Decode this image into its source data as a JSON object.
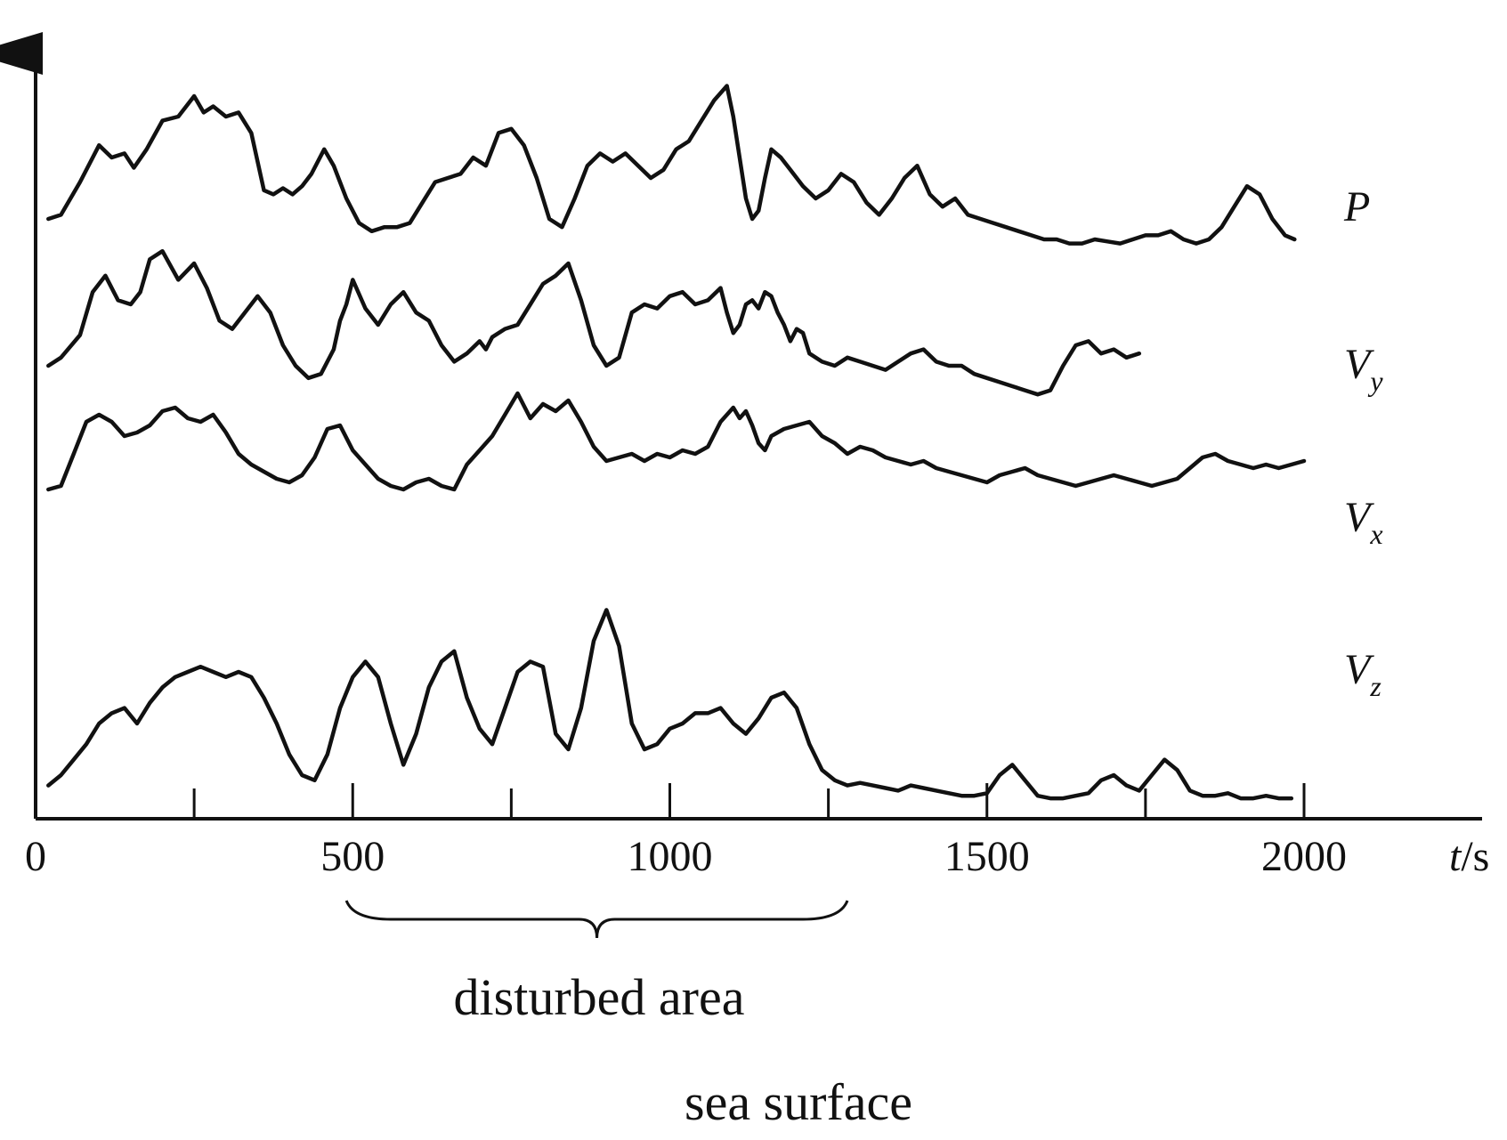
{
  "chart_data": {
    "type": "line",
    "title": "",
    "xlabel": "t/s",
    "xlabel_var": "t",
    "xlabel_unit": "/s",
    "ylabel": "",
    "xlim": [
      0,
      2000
    ],
    "x_ticks": [
      0,
      500,
      1000,
      1500,
      2000
    ],
    "minor_ticks": [
      250,
      750,
      1250,
      1750
    ],
    "grid": false,
    "legend": "none",
    "line_color": "#111111",
    "series": [
      {
        "name": "P",
        "label_main": "P",
        "label_sub": "",
        "x": [
          20,
          40,
          70,
          100,
          120,
          140,
          155,
          175,
          200,
          225,
          250,
          265,
          280,
          300,
          320,
          340,
          360,
          375,
          390,
          405,
          420,
          435,
          455,
          470,
          490,
          510,
          530,
          550,
          570,
          590,
          610,
          630,
          650,
          670,
          690,
          710,
          730,
          750,
          770,
          790,
          810,
          830,
          850,
          870,
          890,
          910,
          930,
          950,
          970,
          990,
          1010,
          1030,
          1050,
          1070,
          1090,
          1100,
          1110,
          1120,
          1130,
          1140,
          1150,
          1160,
          1175,
          1190,
          1210,
          1230,
          1250,
          1270,
          1290,
          1310,
          1330,
          1350,
          1370,
          1390,
          1410,
          1430,
          1450,
          1470,
          1490,
          1510,
          1530,
          1550,
          1570,
          1590,
          1610,
          1630,
          1650,
          1670,
          1690,
          1710,
          1730,
          1750,
          1770,
          1790,
          1810,
          1830,
          1850,
          1870,
          1890,
          1910,
          1930,
          1950,
          1970,
          1985
        ],
        "values": [
          0.3,
          0.32,
          0.48,
          0.66,
          0.6,
          0.62,
          0.55,
          0.64,
          0.78,
          0.8,
          0.9,
          0.82,
          0.85,
          0.8,
          0.82,
          0.72,
          0.44,
          0.42,
          0.45,
          0.42,
          0.46,
          0.52,
          0.64,
          0.56,
          0.4,
          0.28,
          0.24,
          0.26,
          0.26,
          0.28,
          0.38,
          0.48,
          0.5,
          0.52,
          0.6,
          0.56,
          0.72,
          0.74,
          0.66,
          0.5,
          0.3,
          0.26,
          0.4,
          0.56,
          0.62,
          0.58,
          0.62,
          0.56,
          0.5,
          0.54,
          0.64,
          0.68,
          0.78,
          0.88,
          0.95,
          0.8,
          0.6,
          0.4,
          0.3,
          0.34,
          0.5,
          0.64,
          0.6,
          0.54,
          0.46,
          0.4,
          0.44,
          0.52,
          0.48,
          0.38,
          0.32,
          0.4,
          0.5,
          0.56,
          0.42,
          0.36,
          0.4,
          0.32,
          0.3,
          0.28,
          0.26,
          0.24,
          0.22,
          0.2,
          0.2,
          0.18,
          0.18,
          0.2,
          0.19,
          0.18,
          0.2,
          0.22,
          0.22,
          0.24,
          0.2,
          0.18,
          0.2,
          0.26,
          0.36,
          0.46,
          0.42,
          0.3,
          0.22,
          0.2
        ]
      },
      {
        "name": "Vy",
        "label_main": "V",
        "label_sub": "y",
        "x": [
          20,
          40,
          70,
          90,
          110,
          130,
          150,
          165,
          180,
          200,
          225,
          250,
          270,
          290,
          310,
          330,
          350,
          370,
          390,
          410,
          430,
          450,
          470,
          480,
          490,
          500,
          520,
          540,
          560,
          580,
          600,
          620,
          640,
          660,
          680,
          700,
          710,
          720,
          740,
          760,
          780,
          800,
          820,
          840,
          860,
          880,
          900,
          920,
          940,
          960,
          980,
          1000,
          1020,
          1040,
          1060,
          1080,
          1090,
          1100,
          1110,
          1120,
          1130,
          1140,
          1150,
          1160,
          1170,
          1180,
          1190,
          1200,
          1210,
          1220,
          1240,
          1260,
          1280,
          1300,
          1320,
          1340,
          1360,
          1380,
          1400,
          1420,
          1440,
          1460,
          1480,
          1500,
          1520,
          1540,
          1560,
          1580,
          1600,
          1620,
          1640,
          1660,
          1680,
          1700,
          1720,
          1740
        ],
        "values": [
          0.3,
          0.34,
          0.45,
          0.66,
          0.74,
          0.62,
          0.6,
          0.66,
          0.82,
          0.86,
          0.72,
          0.8,
          0.68,
          0.52,
          0.48,
          0.56,
          0.64,
          0.56,
          0.4,
          0.3,
          0.24,
          0.26,
          0.38,
          0.52,
          0.6,
          0.72,
          0.58,
          0.5,
          0.6,
          0.66,
          0.56,
          0.52,
          0.4,
          0.32,
          0.36,
          0.42,
          0.38,
          0.44,
          0.48,
          0.5,
          0.6,
          0.7,
          0.74,
          0.8,
          0.62,
          0.4,
          0.3,
          0.34,
          0.56,
          0.6,
          0.58,
          0.64,
          0.66,
          0.6,
          0.62,
          0.68,
          0.56,
          0.46,
          0.5,
          0.6,
          0.62,
          0.58,
          0.66,
          0.64,
          0.56,
          0.5,
          0.42,
          0.48,
          0.46,
          0.36,
          0.32,
          0.3,
          0.34,
          0.32,
          0.3,
          0.28,
          0.32,
          0.36,
          0.38,
          0.32,
          0.3,
          0.3,
          0.26,
          0.24,
          0.22,
          0.2,
          0.18,
          0.16,
          0.18,
          0.3,
          0.4,
          0.42,
          0.36,
          0.38,
          0.34,
          0.36
        ]
      },
      {
        "name": "Vx",
        "label_main": "V",
        "label_sub": "x",
        "x": [
          20,
          40,
          60,
          80,
          100,
          120,
          140,
          160,
          180,
          200,
          220,
          240,
          260,
          280,
          300,
          320,
          340,
          360,
          380,
          400,
          420,
          440,
          460,
          480,
          500,
          520,
          540,
          560,
          580,
          600,
          620,
          640,
          660,
          680,
          700,
          720,
          740,
          760,
          780,
          800,
          820,
          840,
          860,
          880,
          900,
          920,
          940,
          960,
          980,
          1000,
          1020,
          1040,
          1060,
          1080,
          1100,
          1110,
          1120,
          1130,
          1140,
          1150,
          1160,
          1180,
          1200,
          1220,
          1240,
          1260,
          1280,
          1300,
          1320,
          1340,
          1360,
          1380,
          1400,
          1420,
          1440,
          1460,
          1480,
          1500,
          1520,
          1540,
          1560,
          1580,
          1600,
          1620,
          1640,
          1660,
          1680,
          1700,
          1720,
          1740,
          1760,
          1780,
          1800,
          1820,
          1840,
          1860,
          1880,
          1900,
          1920,
          1940,
          1960,
          1980,
          2000
        ],
        "values": [
          0.4,
          0.42,
          0.6,
          0.78,
          0.82,
          0.78,
          0.7,
          0.72,
          0.76,
          0.84,
          0.86,
          0.8,
          0.78,
          0.82,
          0.72,
          0.6,
          0.54,
          0.5,
          0.46,
          0.44,
          0.48,
          0.58,
          0.74,
          0.76,
          0.62,
          0.54,
          0.46,
          0.42,
          0.4,
          0.44,
          0.46,
          0.42,
          0.4,
          0.54,
          0.62,
          0.7,
          0.82,
          0.94,
          0.8,
          0.88,
          0.84,
          0.9,
          0.78,
          0.64,
          0.56,
          0.58,
          0.6,
          0.56,
          0.6,
          0.58,
          0.62,
          0.6,
          0.64,
          0.78,
          0.86,
          0.8,
          0.84,
          0.76,
          0.66,
          0.62,
          0.7,
          0.74,
          0.76,
          0.78,
          0.7,
          0.66,
          0.6,
          0.64,
          0.62,
          0.58,
          0.56,
          0.54,
          0.56,
          0.52,
          0.5,
          0.48,
          0.46,
          0.44,
          0.48,
          0.5,
          0.52,
          0.48,
          0.46,
          0.44,
          0.42,
          0.44,
          0.46,
          0.48,
          0.46,
          0.44,
          0.42,
          0.44,
          0.46,
          0.52,
          0.58,
          0.6,
          0.56,
          0.54,
          0.52,
          0.54,
          0.52,
          0.54,
          0.56
        ]
      },
      {
        "name": "Vz",
        "label_main": "V",
        "label_sub": "z",
        "x": [
          20,
          40,
          60,
          80,
          100,
          120,
          140,
          160,
          180,
          200,
          220,
          240,
          260,
          280,
          300,
          320,
          340,
          360,
          380,
          400,
          420,
          440,
          460,
          480,
          500,
          520,
          540,
          560,
          580,
          600,
          620,
          640,
          660,
          680,
          700,
          720,
          740,
          760,
          780,
          800,
          820,
          840,
          860,
          880,
          900,
          920,
          940,
          960,
          980,
          1000,
          1020,
          1040,
          1060,
          1080,
          1100,
          1120,
          1140,
          1160,
          1180,
          1200,
          1220,
          1240,
          1260,
          1280,
          1300,
          1320,
          1340,
          1360,
          1380,
          1400,
          1420,
          1440,
          1460,
          1480,
          1500,
          1520,
          1540,
          1560,
          1580,
          1600,
          1620,
          1640,
          1660,
          1680,
          1700,
          1720,
          1740,
          1760,
          1780,
          1800,
          1820,
          1840,
          1860,
          1880,
          1900,
          1920,
          1940,
          1960,
          1980
        ],
        "values": [
          0.06,
          0.1,
          0.16,
          0.22,
          0.3,
          0.34,
          0.36,
          0.3,
          0.38,
          0.44,
          0.48,
          0.5,
          0.52,
          0.5,
          0.48,
          0.5,
          0.48,
          0.4,
          0.3,
          0.18,
          0.1,
          0.08,
          0.18,
          0.36,
          0.48,
          0.54,
          0.48,
          0.3,
          0.14,
          0.26,
          0.44,
          0.54,
          0.58,
          0.4,
          0.28,
          0.22,
          0.36,
          0.5,
          0.54,
          0.52,
          0.26,
          0.2,
          0.36,
          0.62,
          0.74,
          0.6,
          0.3,
          0.2,
          0.22,
          0.28,
          0.3,
          0.34,
          0.34,
          0.36,
          0.3,
          0.26,
          0.32,
          0.4,
          0.42,
          0.36,
          0.22,
          0.12,
          0.08,
          0.06,
          0.07,
          0.06,
          0.05,
          0.04,
          0.06,
          0.05,
          0.04,
          0.03,
          0.02,
          0.02,
          0.03,
          0.1,
          0.14,
          0.08,
          0.02,
          0.01,
          0.01,
          0.02,
          0.03,
          0.08,
          0.1,
          0.06,
          0.04,
          0.1,
          0.16,
          0.12,
          0.04,
          0.02,
          0.02,
          0.03,
          0.01,
          0.01,
          0.02,
          0.01,
          0.01
        ]
      }
    ],
    "annotations": {
      "bracket_text": "disturbed area",
      "bracket_range": [
        490,
        1280
      ],
      "footer_text": "sea surface"
    }
  }
}
